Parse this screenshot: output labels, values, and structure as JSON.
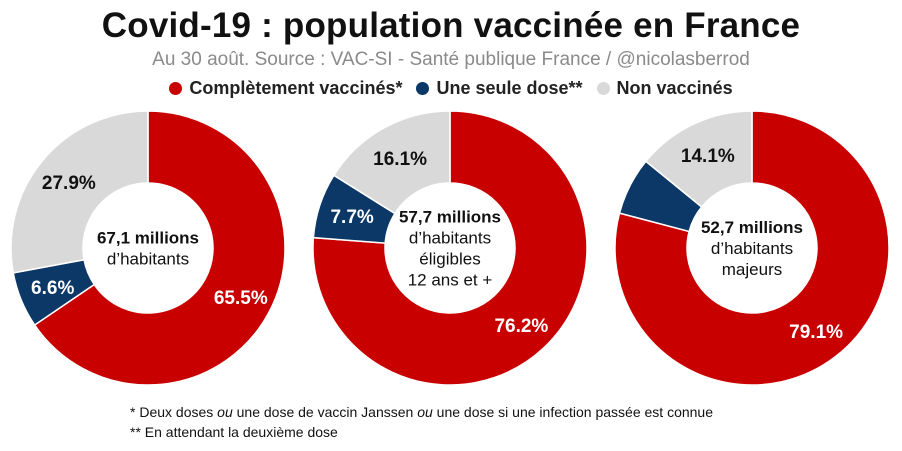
{
  "header": {
    "title": "Covid-19 : population vaccinée en France",
    "subtitle": "Au 30 août. Source : VAC-SI - Santé publique France / @nicolasberrod"
  },
  "legend": [
    {
      "label": "Complètement vaccinés*",
      "color": "#c90000"
    },
    {
      "label": "Une seule dose**",
      "color": "#0b3866"
    },
    {
      "label": "Non vaccinés",
      "color": "#d9d9d9"
    }
  ],
  "chart_data": [
    {
      "type": "pie",
      "donut": true,
      "center_lines": [
        "67,1 millions",
        "d’habitants"
      ],
      "series": [
        {
          "name": "Complètement vaccinés*",
          "value": 65.5,
          "label": "65.5%"
        },
        {
          "name": "Une seule dose**",
          "value": 6.6,
          "label": "6.6%"
        },
        {
          "name": "Non vaccinés",
          "value": 27.9,
          "label": "27.9%"
        }
      ]
    },
    {
      "type": "pie",
      "donut": true,
      "center_lines": [
        "57,7 millions",
        "d’habitants",
        "éligibles",
        "12 ans et +"
      ],
      "series": [
        {
          "name": "Complètement vaccinés*",
          "value": 76.2,
          "label": "76.2%"
        },
        {
          "name": "Une seule dose**",
          "value": 7.7,
          "label": "7.7%"
        },
        {
          "name": "Non vaccinés",
          "value": 16.1,
          "label": "16.1%"
        }
      ]
    },
    {
      "type": "pie",
      "donut": true,
      "center_lines": [
        "52,7 millions",
        "d’habitants",
        "majeurs"
      ],
      "series": [
        {
          "name": "Complètement vaccinés*",
          "value": 79.1,
          "label": "79.1%"
        },
        {
          "name": "Une seule dose**",
          "value": 6.8,
          "label": ""
        },
        {
          "name": "Non vaccinés",
          "value": 14.1,
          "label": "14.1%"
        }
      ]
    }
  ],
  "notes": {
    "line1_prefix": "* Deux doses ",
    "line1_ou1": "ou",
    "line1_mid": " une dose de vaccin Janssen ",
    "line1_ou2": "ou",
    "line1_suffix": " une dose si une infection passée est connue",
    "line2": "** En attendant la deuxième dose"
  }
}
